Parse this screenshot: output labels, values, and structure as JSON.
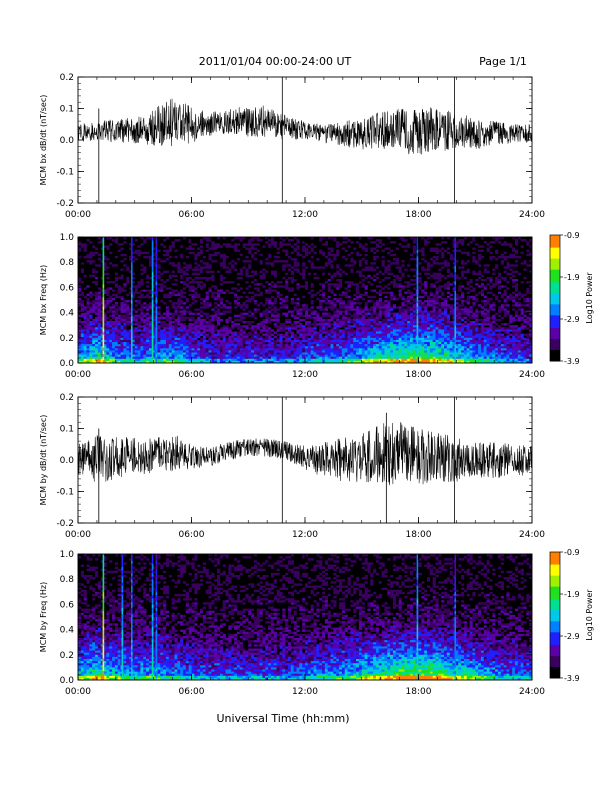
{
  "header": {
    "title": "2011/01/04  00:00-24:00 UT",
    "page": "Page 1/1"
  },
  "footer": {
    "xlabel": "Universal Time (hh:mm)"
  },
  "colorbar": {
    "label": "Log10 Power",
    "tick_labels": [
      "-0.9",
      "-1.9",
      "-2.9",
      "-3.9"
    ],
    "range": [
      -3.9,
      -0.9
    ],
    "colors": [
      "#000000",
      "#3a0060",
      "#5a00a8",
      "#2020ff",
      "#0080ff",
      "#00c8e8",
      "#00e090",
      "#20e020",
      "#a0f000",
      "#ffff00",
      "#ff8000",
      "#ff0000"
    ]
  },
  "chart_data": [
    {
      "type": "line",
      "ylabel": "MCM bx dB/dt (nT/sec)",
      "xlim": [
        0,
        24
      ],
      "ylim": [
        -0.2,
        0.2
      ],
      "x_ticks": [
        "00:00",
        "06:00",
        "12:00",
        "18:00",
        "24:00"
      ],
      "y_ticks": [
        "0.2",
        "0.1",
        "0.0",
        "-0.1",
        "-0.2"
      ],
      "series": [
        {
          "x": [
            0,
            1,
            2,
            3,
            4,
            5,
            6,
            7,
            8,
            9,
            10,
            11,
            12,
            13,
            14,
            15,
            16,
            17,
            18,
            19,
            20,
            21,
            22,
            23,
            24
          ],
          "y_center": [
            0.02,
            0.03,
            0.03,
            0.03,
            0.04,
            0.06,
            0.05,
            0.05,
            0.06,
            0.06,
            0.06,
            0.04,
            0.03,
            0.02,
            0.02,
            0.02,
            0.03,
            0.03,
            0.03,
            0.03,
            0.03,
            0.02,
            0.02,
            0.02,
            0.02
          ],
          "y_spread": [
            0.03,
            0.03,
            0.04,
            0.04,
            0.06,
            0.08,
            0.06,
            0.04,
            0.04,
            0.05,
            0.05,
            0.04,
            0.03,
            0.03,
            0.04,
            0.05,
            0.06,
            0.07,
            0.08,
            0.07,
            0.06,
            0.05,
            0.04,
            0.03,
            0.03
          ]
        }
      ],
      "spikes": [
        {
          "x": 1.1,
          "y0": 0.1,
          "y1": -0.2
        },
        {
          "x": 10.8,
          "y0": 0.2,
          "y1": -0.2
        },
        {
          "x": 19.9,
          "y0": 0.2,
          "y1": -0.2
        }
      ]
    },
    {
      "type": "heatmap",
      "ylabel": "MCM bx Freq (Hz)",
      "xlim": [
        0,
        24
      ],
      "ylim": [
        0.0,
        1.0
      ],
      "x_ticks": [
        "00:00",
        "06:00",
        "12:00",
        "18:00",
        "24:00"
      ],
      "y_ticks": [
        "1.0",
        "0.8",
        "0.6",
        "0.4",
        "0.2",
        "0.0"
      ],
      "activity": [
        0.5,
        0.7,
        0.5,
        0.4,
        0.5,
        0.5,
        0.4,
        0.3,
        0.3,
        0.3,
        0.3,
        0.3,
        0.35,
        0.4,
        0.45,
        0.55,
        0.65,
        0.75,
        0.8,
        0.75,
        0.6,
        0.5,
        0.4,
        0.35,
        0.3
      ],
      "bright_lines": [
        {
          "x": 1.3,
          "level": 0.95
        },
        {
          "x": 2.8,
          "level": 0.55
        },
        {
          "x": 3.9,
          "level": 0.6
        },
        {
          "x": 4.1,
          "level": 0.45
        },
        {
          "x": 17.9,
          "level": 0.55
        },
        {
          "x": 19.9,
          "level": 0.5
        }
      ]
    },
    {
      "type": "line",
      "ylabel": "MCM by dB/dt (nT/sec)",
      "xlim": [
        0,
        24
      ],
      "ylim": [
        -0.2,
        0.2
      ],
      "x_ticks": [
        "00:00",
        "06:00",
        "12:00",
        "18:00",
        "24:00"
      ],
      "y_ticks": [
        "0.2",
        "0.1",
        "0.0",
        "-0.1",
        "-0.2"
      ],
      "series": [
        {
          "x": [
            0,
            1,
            2,
            3,
            4,
            5,
            6,
            7,
            8,
            9,
            10,
            11,
            12,
            13,
            14,
            15,
            16,
            17,
            18,
            19,
            20,
            21,
            22,
            23,
            24
          ],
          "y_center": [
            0.0,
            0.0,
            0.01,
            0.02,
            0.01,
            0.02,
            0.01,
            0.01,
            0.03,
            0.04,
            0.04,
            0.03,
            0.01,
            0.0,
            0.0,
            0.01,
            0.02,
            0.02,
            0.01,
            0.01,
            0.0,
            0.0,
            0.0,
            0.0,
            0.0
          ],
          "y_spread": [
            0.05,
            0.08,
            0.07,
            0.06,
            0.06,
            0.06,
            0.04,
            0.03,
            0.03,
            0.03,
            0.03,
            0.03,
            0.04,
            0.06,
            0.07,
            0.08,
            0.1,
            0.1,
            0.09,
            0.08,
            0.07,
            0.06,
            0.06,
            0.05,
            0.05
          ]
        }
      ],
      "spikes": [
        {
          "x": 1.1,
          "y0": 0.1,
          "y1": -0.2
        },
        {
          "x": 10.8,
          "y0": 0.2,
          "y1": -0.2
        },
        {
          "x": 16.3,
          "y0": 0.15,
          "y1": -0.2
        },
        {
          "x": 19.9,
          "y0": 0.2,
          "y1": -0.2
        }
      ]
    },
    {
      "type": "heatmap",
      "ylabel": "MCM by Freq (Hz)",
      "xlim": [
        0,
        24
      ],
      "ylim": [
        0.0,
        1.0
      ],
      "x_ticks": [
        "00:00",
        "06:00",
        "12:00",
        "18:00",
        "24:00"
      ],
      "y_ticks": [
        "1.0",
        "0.8",
        "0.6",
        "0.4",
        "0.2",
        "0.0"
      ],
      "activity": [
        0.55,
        0.7,
        0.55,
        0.5,
        0.5,
        0.45,
        0.4,
        0.35,
        0.35,
        0.35,
        0.35,
        0.35,
        0.4,
        0.45,
        0.5,
        0.6,
        0.7,
        0.8,
        0.85,
        0.8,
        0.65,
        0.55,
        0.45,
        0.4,
        0.35
      ],
      "bright_lines": [
        {
          "x": 1.3,
          "level": 0.95
        },
        {
          "x": 2.3,
          "level": 0.55
        },
        {
          "x": 2.8,
          "level": 0.5
        },
        {
          "x": 3.9,
          "level": 0.55
        },
        {
          "x": 4.1,
          "level": 0.45
        },
        {
          "x": 17.9,
          "level": 0.55
        },
        {
          "x": 19.9,
          "level": 0.45
        }
      ]
    }
  ]
}
